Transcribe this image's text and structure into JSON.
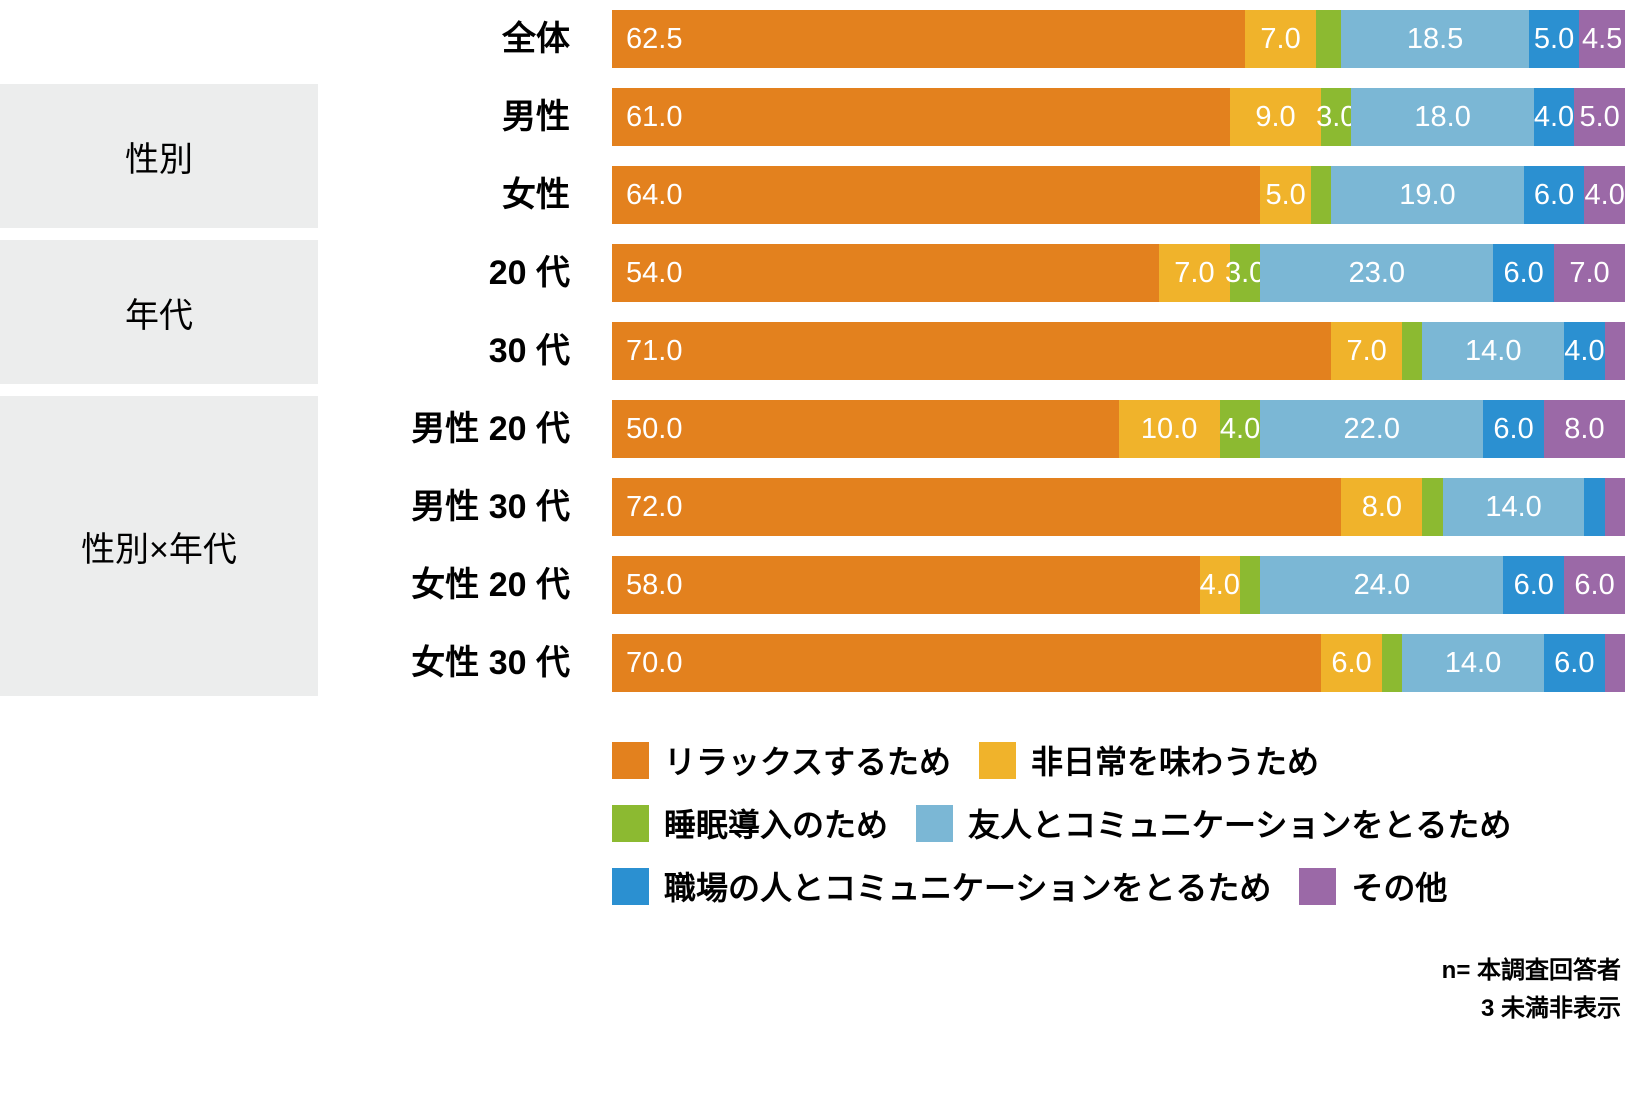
{
  "chart_data": {
    "type": "bar",
    "orientation": "horizontal-stacked",
    "unit": "%",
    "xlim": [
      0,
      100
    ],
    "categories": [
      "全体",
      "男性",
      "女性",
      "20 代",
      "30 代",
      "男性 20 代",
      "男性 30 代",
      "女性 20 代",
      "女性 30 代"
    ],
    "groups": [
      {
        "label": "",
        "rows": [
          0
        ]
      },
      {
        "label": "性別",
        "rows": [
          1,
          2
        ]
      },
      {
        "label": "年代",
        "rows": [
          3,
          4
        ]
      },
      {
        "label": "性別×年代",
        "rows": [
          5,
          6,
          7,
          8
        ]
      }
    ],
    "series": [
      {
        "name": "リラックスするため",
        "color": "#E3811E",
        "values": [
          62.5,
          61.0,
          64.0,
          54.0,
          71.0,
          50.0,
          72.0,
          58.0,
          70.0
        ]
      },
      {
        "name": "非日常を味わうため",
        "color": "#F0B32B",
        "values": [
          7.0,
          9.0,
          5.0,
          7.0,
          7.0,
          10.0,
          8.0,
          4.0,
          6.0
        ]
      },
      {
        "name": "睡眠導入のため",
        "color": "#8CBA31",
        "values": [
          2.5,
          3.0,
          2.0,
          3.0,
          2.0,
          4.0,
          2.0,
          2.0,
          2.0
        ]
      },
      {
        "name": "友人とコミュニケーションをとるため",
        "color": "#7BB7D5",
        "values": [
          18.5,
          18.0,
          19.0,
          23.0,
          14.0,
          22.0,
          14.0,
          24.0,
          14.0
        ]
      },
      {
        "name": "職場の人とコミュニケーションをとるため",
        "color": "#2B90D1",
        "values": [
          5.0,
          4.0,
          6.0,
          6.0,
          4.0,
          6.0,
          2.0,
          6.0,
          6.0
        ]
      },
      {
        "name": "その他",
        "color": "#9B69A7",
        "values": [
          4.5,
          5.0,
          4.0,
          7.0,
          2.0,
          8.0,
          2.0,
          6.0,
          2.0
        ]
      }
    ],
    "min_label_value": 3,
    "label_rule": "3 未満非表示",
    "legend_position": "bottom"
  },
  "legend": {
    "rows": [
      [
        0,
        1
      ],
      [
        2,
        3
      ],
      [
        4,
        5
      ]
    ]
  },
  "footer": {
    "line1": "n= 本調査回答者",
    "line2": "3 未満非表示"
  }
}
